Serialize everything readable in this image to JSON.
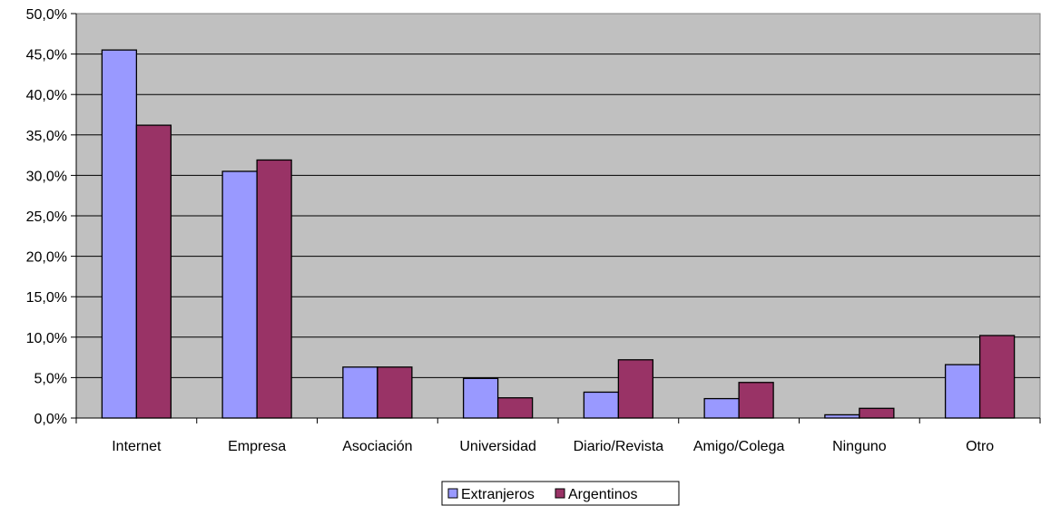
{
  "chart_data": {
    "type": "bar",
    "title": "",
    "xlabel": "",
    "ylabel": "",
    "categories": [
      "Internet",
      "Empresa",
      "Asociación",
      "Universidad",
      "Diario/Revista",
      "Amigo/Colega",
      "Ninguno",
      "Otro"
    ],
    "series": [
      {
        "name": "Extranjeros",
        "color": "#9999ff",
        "values": [
          45.5,
          30.5,
          6.3,
          4.9,
          3.2,
          2.4,
          0.4,
          6.6
        ]
      },
      {
        "name": "Argentinos",
        "color": "#993366",
        "values": [
          36.2,
          31.9,
          6.3,
          2.5,
          7.2,
          4.4,
          1.2,
          10.2
        ]
      }
    ],
    "ylim": [
      0,
      50
    ],
    "yticks": [
      "0,0%",
      "5,0%",
      "10,0%",
      "15,0%",
      "20,0%",
      "25,0%",
      "30,0%",
      "35,0%",
      "40,0%",
      "45,0%",
      "50,0%"
    ],
    "grid": true,
    "plot_background": "#c0c0c0",
    "legend_position": "bottom"
  }
}
